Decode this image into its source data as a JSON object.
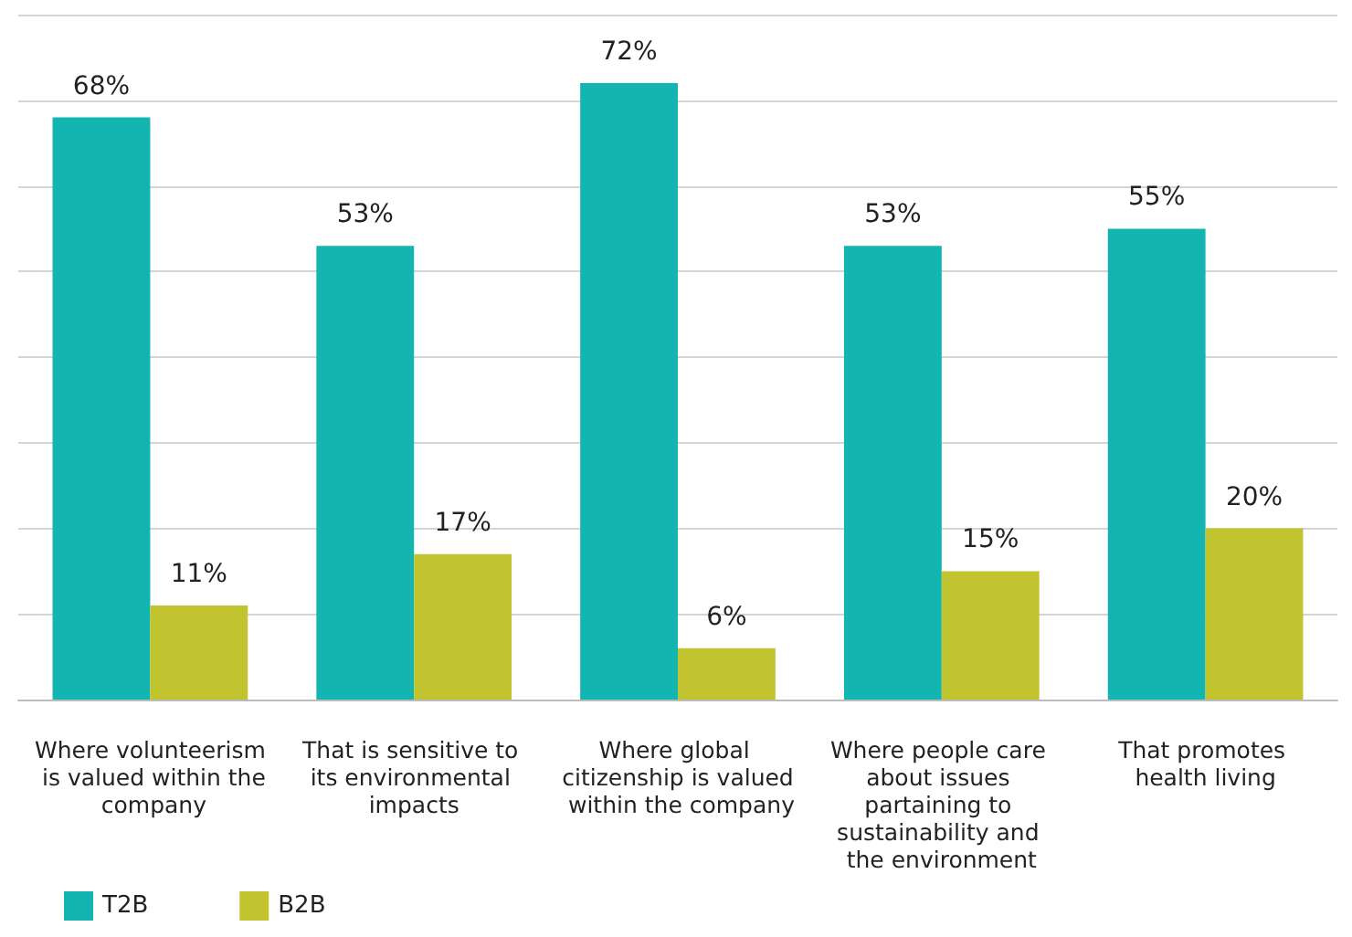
{
  "chart_data": {
    "type": "bar",
    "categories": [
      "Where volunteerism is valued within the company",
      "That is sensitive to its environmental impacts",
      "Where global citizenship is valued within the company",
      "Where people care about issues partaining to sustainability and the environment",
      "That promotes health living"
    ],
    "series": [
      {
        "name": "T2B",
        "color": "#12b5b0",
        "values": [
          68,
          53,
          72,
          53,
          55
        ],
        "value_labels": [
          "68%",
          "53%",
          "72%",
          "53%",
          "55%"
        ]
      },
      {
        "name": "B2B",
        "color": "#c1c42f",
        "values": [
          11,
          17,
          6,
          15,
          20
        ],
        "value_labels": [
          "11%",
          "17%",
          "6%",
          "15%",
          "20%"
        ]
      }
    ],
    "ylim": [
      0,
      80
    ],
    "yticks": [
      0,
      10,
      20,
      30,
      40,
      50,
      60,
      70,
      80
    ],
    "tick_labels": "x",
    "grid": "y",
    "legend": "bottom left"
  }
}
